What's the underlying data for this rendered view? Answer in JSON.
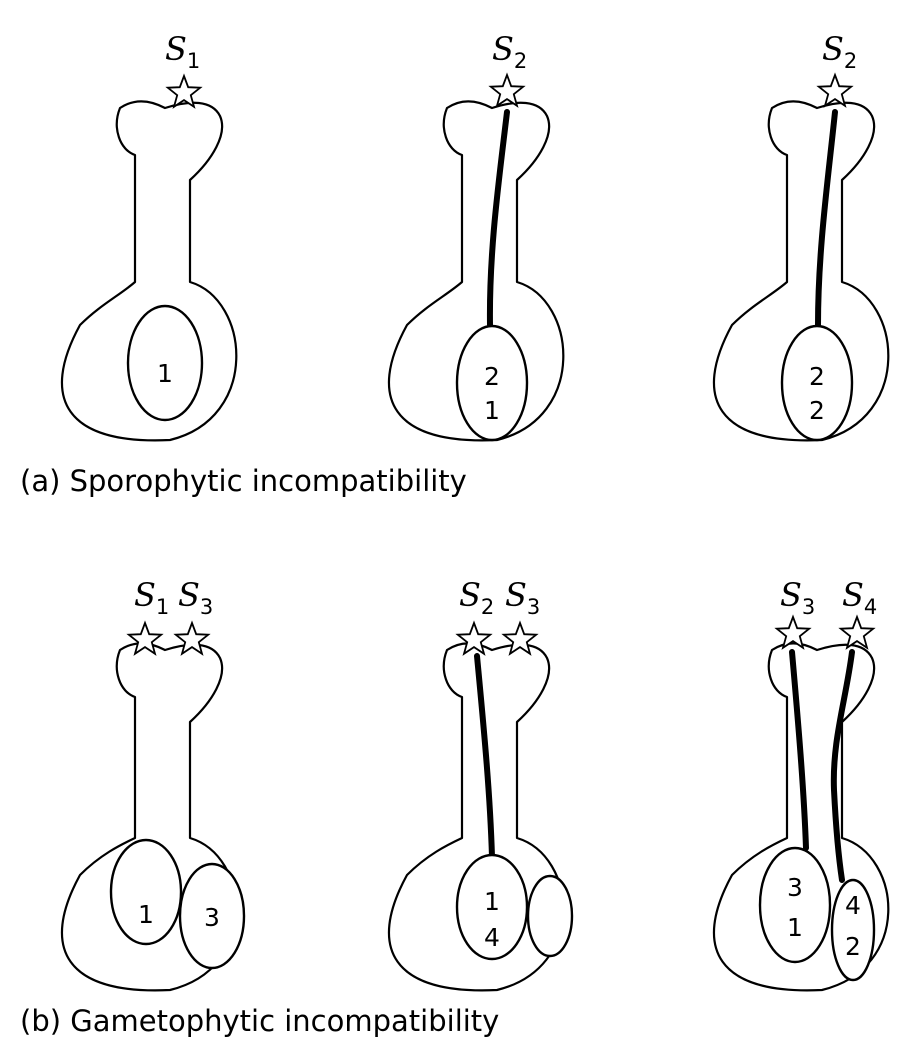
{
  "captions": {
    "a": "(a) Sporophytic incompatibility",
    "b": "(b) Gametophytic incompatibility"
  },
  "panels": {
    "a1": {
      "pollen": [
        {
          "letter": "S",
          "sub": "1"
        }
      ],
      "ovule_numbers": [
        "1"
      ]
    },
    "a2": {
      "pollen": [
        {
          "letter": "S",
          "sub": "2"
        }
      ],
      "ovule_numbers": [
        "2",
        "1"
      ]
    },
    "a3": {
      "pollen": [
        {
          "letter": "S",
          "sub": "2"
        }
      ],
      "ovule_numbers": [
        "2",
        "2"
      ]
    },
    "b1": {
      "pollen": [
        {
          "letter": "S",
          "sub": "1"
        },
        {
          "letter": "S",
          "sub": "3"
        }
      ],
      "ovule_numbers": [
        "1",
        "3"
      ]
    },
    "b2": {
      "pollen": [
        {
          "letter": "S",
          "sub": "2"
        },
        {
          "letter": "S",
          "sub": "3"
        }
      ],
      "ovule_numbers": [
        "1",
        "4"
      ]
    },
    "b3": {
      "pollen": [
        {
          "letter": "S",
          "sub": "3"
        },
        {
          "letter": "S",
          "sub": "4"
        }
      ],
      "ovule_numbers": [
        "3",
        "1",
        "4",
        "2"
      ]
    }
  }
}
